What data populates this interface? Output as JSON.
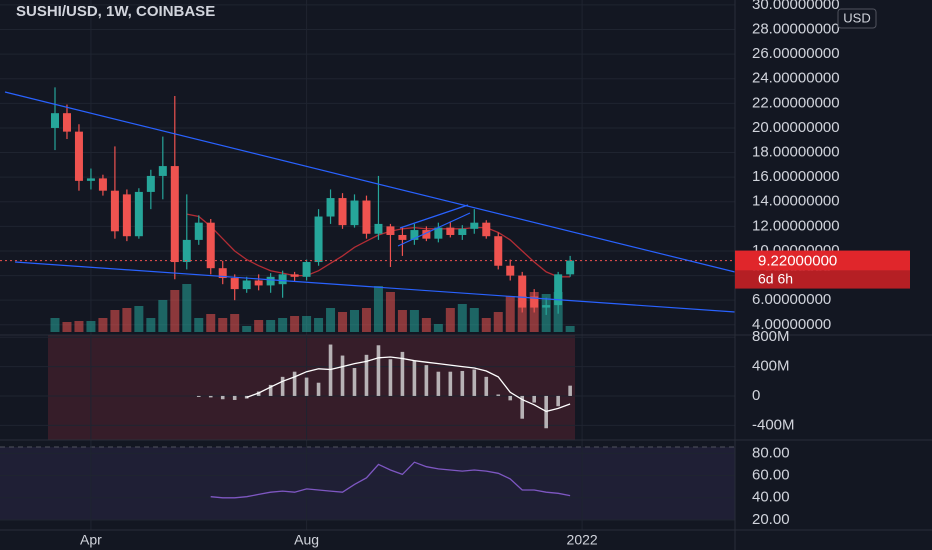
{
  "chart_data": [
    {
      "type": "candlestick",
      "title": "SUSHI/USD, 1W, COINBASE",
      "currency": "USD",
      "categories": [
        null,
        null,
        null,
        "Apr",
        null,
        null,
        null,
        null,
        null,
        null,
        null,
        null,
        null,
        null,
        null,
        null,
        null,
        null,
        null,
        null,
        null,
        "Aug",
        null,
        null,
        null,
        null,
        null,
        null,
        null,
        null,
        null,
        null,
        null,
        null,
        null,
        null,
        null,
        null,
        null,
        null,
        null,
        null,
        null,
        null,
        "2022"
      ],
      "open": [
        20.0,
        21.2,
        19.7,
        15.7,
        15.9,
        14.9,
        14.6,
        11.2,
        14.8,
        16.1,
        16.9,
        9.1,
        10.9,
        12.3,
        8.6,
        7.8,
        6.9,
        7.6,
        7.2,
        7.3,
        8.1,
        7.9,
        9.1,
        12.8,
        14.3,
        12.1,
        14.1,
        11.4,
        12.0,
        11.3,
        10.9,
        11.7,
        11.0,
        11.9,
        11.3,
        11.8,
        12.3,
        11.2,
        8.8,
        8.0,
        6.3,
        5.4,
        5.6,
        8.1,
        null
      ],
      "high": [
        23.3,
        21.9,
        20.3,
        16.7,
        16.2,
        18.5,
        15.0,
        15.1,
        16.6,
        19.3,
        22.6,
        14.6,
        12.9,
        12.6,
        9.2,
        8.1,
        7.9,
        8.1,
        8.2,
        8.4,
        8.3,
        9.3,
        13.4,
        15.0,
        14.7,
        14.6,
        14.5,
        16.1,
        12.2,
        11.9,
        12.2,
        12.0,
        12.3,
        12.4,
        12.1,
        13.4,
        12.5,
        11.5,
        9.3,
        8.3,
        6.9,
        6.2,
        8.3,
        9.6,
        null
      ],
      "low": [
        18.2,
        19.1,
        14.9,
        15.0,
        14.5,
        11.0,
        10.8,
        11.0,
        13.4,
        14.2,
        7.7,
        8.5,
        10.5,
        8.1,
        7.3,
        6.0,
        6.6,
        6.8,
        6.6,
        6.2,
        7.5,
        7.6,
        8.8,
        12.2,
        11.8,
        11.9,
        11.0,
        10.9,
        8.7,
        9.6,
        10.5,
        10.8,
        10.7,
        11.1,
        10.9,
        11.4,
        11.0,
        8.5,
        7.6,
        5.0,
        5.0,
        4.8,
        4.9,
        7.9,
        null
      ],
      "close": [
        21.2,
        19.7,
        15.7,
        15.9,
        14.9,
        11.6,
        11.2,
        14.8,
        16.1,
        16.9,
        9.1,
        10.9,
        12.3,
        8.6,
        7.8,
        6.9,
        7.6,
        7.2,
        7.9,
        8.1,
        7.9,
        9.1,
        12.8,
        14.3,
        12.1,
        14.1,
        11.4,
        12.2,
        11.3,
        10.9,
        11.7,
        11.0,
        11.9,
        11.3,
        11.8,
        12.3,
        11.2,
        8.8,
        8.0,
        5.4,
        5.4,
        5.6,
        8.1,
        9.22,
        null
      ],
      "volume": [
        14,
        10,
        11,
        11,
        14,
        22,
        24,
        26,
        14,
        32,
        42,
        48,
        14,
        18,
        14,
        18,
        6,
        12,
        12,
        14,
        16,
        16,
        14,
        24,
        20,
        22,
        24,
        46,
        40,
        22,
        22,
        14,
        8,
        24,
        28,
        24,
        14,
        20,
        36,
        36,
        40,
        38,
        40,
        6,
        null
      ],
      "up_color": "#26a69a",
      "down_color": "#ef5350",
      "ma": {
        "color": "#b22d35",
        "values": [
          null,
          null,
          null,
          null,
          null,
          null,
          null,
          null,
          null,
          null,
          null,
          13.0,
          12.8,
          12.0,
          11.0,
          10.0,
          9.3,
          8.8,
          8.4,
          8.2,
          8.0,
          8.0,
          8.4,
          9.0,
          9.6,
          10.3,
          10.8,
          11.3,
          11.6,
          11.8,
          11.9,
          11.8,
          11.8,
          11.8,
          11.8,
          11.9,
          11.9,
          11.5,
          10.9,
          10.0,
          9.1,
          8.3,
          7.9,
          7.9,
          null
        ]
      },
      "ylim": [
        3.17,
        30.4
      ],
      "yticks": [
        {
          "value": 4,
          "label": "4.00000000"
        },
        {
          "value": 6,
          "label": "6.00000000"
        },
        {
          "value": 8,
          "label": "8.00000000"
        },
        {
          "value": 10,
          "label": "10.00000000"
        },
        {
          "value": 12,
          "label": "12.00000000"
        },
        {
          "value": 14,
          "label": "14.00000000"
        },
        {
          "value": 16,
          "label": "16.00000000"
        },
        {
          "value": 18,
          "label": "18.00000000"
        },
        {
          "value": 20,
          "label": "20.00000000"
        },
        {
          "value": 22,
          "label": "22.00000000"
        },
        {
          "value": 24,
          "label": "24.00000000"
        },
        {
          "value": 26,
          "label": "26.00000000"
        },
        {
          "value": 28,
          "label": "28.00000000"
        },
        {
          "value": 30,
          "label": "30.00000000"
        }
      ],
      "last_price": {
        "value": 9.22,
        "label": "9.22000000"
      },
      "countdown": "6d 6h"
    },
    {
      "type": "macd",
      "histogram": {
        "color": "#d8d8d8",
        "values": [
          null,
          null,
          null,
          null,
          null,
          null,
          null,
          null,
          null,
          null,
          null,
          null,
          -10000000,
          -20000000,
          -45000000,
          -55000000,
          -35000000,
          60000000,
          150000000,
          260000000,
          330000000,
          250000000,
          180000000,
          700000000,
          550000000,
          380000000,
          560000000,
          690000000,
          500000000,
          600000000,
          480000000,
          420000000,
          330000000,
          330000000,
          340000000,
          360000000,
          260000000,
          20000000,
          -60000000,
          -310000000,
          -90000000,
          -440000000,
          -140000000,
          140000000,
          null
        ]
      },
      "line": {
        "color": "#ffffff",
        "values": [
          null,
          null,
          null,
          null,
          null,
          null,
          null,
          null,
          null,
          null,
          null,
          null,
          null,
          null,
          null,
          null,
          -20000000,
          40000000,
          120000000,
          200000000,
          260000000,
          330000000,
          370000000,
          360000000,
          400000000,
          440000000,
          470000000,
          520000000,
          530000000,
          510000000,
          480000000,
          460000000,
          440000000,
          420000000,
          400000000,
          380000000,
          340000000,
          260000000,
          50000000,
          -50000000,
          -120000000,
          -210000000,
          -170000000,
          -110000000,
          null
        ]
      },
      "ylim": [
        -600000000,
        830000000
      ],
      "yticks": [
        {
          "value": -400000000,
          "label": "-400M"
        },
        0,
        {
          "value": 400000000,
          "label": "400M"
        },
        {
          "value": 800000000,
          "label": "800M"
        }
      ]
    },
    {
      "type": "line",
      "color": "#7e57c2",
      "values": [
        null,
        null,
        null,
        null,
        null,
        null,
        null,
        null,
        null,
        null,
        null,
        null,
        null,
        41,
        40,
        40,
        41,
        43,
        45,
        46,
        45,
        48,
        47,
        46,
        45,
        52,
        58,
        70,
        65,
        61,
        72,
        68,
        66,
        65,
        64,
        65,
        64,
        62,
        57,
        47,
        47,
        45,
        44,
        42,
        null
      ],
      "ylim": [
        11,
        92
      ],
      "yticks": [
        {
          "value": 20,
          "label": "20.00"
        },
        {
          "value": 40,
          "label": "40.00"
        },
        {
          "value": 60,
          "label": "60.00"
        },
        {
          "value": 80,
          "label": "80.00"
        }
      ]
    }
  ]
}
